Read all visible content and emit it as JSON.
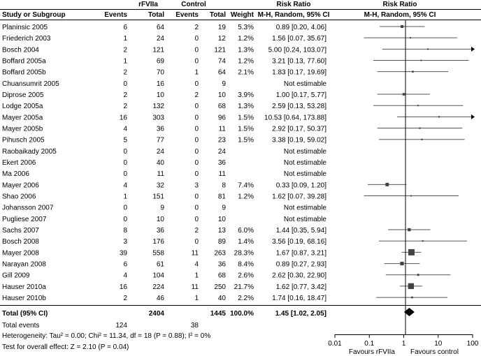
{
  "headers": {
    "group_rfviia": "rFVIIa",
    "group_control": "Control",
    "risk_ratio": "Risk Ratio",
    "study": "Study or Subgroup",
    "events": "Events",
    "total": "Total",
    "weight": "Weight",
    "method": "M-H, Random, 95% CI"
  },
  "chart_data": {
    "type": "forest",
    "xscale": "log",
    "xlim": [
      0.01,
      100
    ],
    "xticks": [
      {
        "value": 0.01,
        "label": "0.01"
      },
      {
        "value": 0.1,
        "label": "0.1"
      },
      {
        "value": 1,
        "label": "1"
      },
      {
        "value": 10,
        "label": "10"
      },
      {
        "value": 100,
        "label": "100"
      }
    ],
    "favours_left": "Favours rFVIIa",
    "favours_right": "Favours control",
    "studies": [
      {
        "name": "Planinsic 2005",
        "e1": "6",
        "t1": "64",
        "e2": "2",
        "t2": "19",
        "weight": "5.3%",
        "ci_text": "0.89 [0.20, 4.06]",
        "rr": 0.89,
        "lo": 0.2,
        "hi": 4.06
      },
      {
        "name": "Friederich 2003",
        "e1": "1",
        "t1": "24",
        "e2": "0",
        "t2": "12",
        "weight": "1.2%",
        "ci_text": "1.56 [0.07, 35.67]",
        "rr": 1.56,
        "lo": 0.07,
        "hi": 35.67
      },
      {
        "name": "Bosch 2004",
        "e1": "2",
        "t1": "121",
        "e2": "0",
        "t2": "121",
        "weight": "1.3%",
        "ci_text": "5.00 [0.24, 103.07]",
        "rr": 5.0,
        "lo": 0.24,
        "hi": 103.07
      },
      {
        "name": "Boffard 2005a",
        "e1": "1",
        "t1": "69",
        "e2": "0",
        "t2": "74",
        "weight": "1.2%",
        "ci_text": "3.21 [0.13, 77.60]",
        "rr": 3.21,
        "lo": 0.13,
        "hi": 77.6
      },
      {
        "name": "Boffard 2005b",
        "e1": "2",
        "t1": "70",
        "e2": "1",
        "t2": "64",
        "weight": "2.1%",
        "ci_text": "1.83 [0.17, 19.69]",
        "rr": 1.83,
        "lo": 0.17,
        "hi": 19.69
      },
      {
        "name": "Chuansumrit 2005",
        "e1": "0",
        "t1": "16",
        "e2": "0",
        "t2": "9",
        "weight": "",
        "ci_text": "Not estimable",
        "rr": null,
        "lo": null,
        "hi": null
      },
      {
        "name": "Diprose 2005",
        "e1": "2",
        "t1": "10",
        "e2": "2",
        "t2": "10",
        "weight": "3.9%",
        "ci_text": "1.00 [0.17, 5.77]",
        "rr": 1.0,
        "lo": 0.17,
        "hi": 5.77
      },
      {
        "name": "Lodge 2005a",
        "e1": "2",
        "t1": "132",
        "e2": "0",
        "t2": "68",
        "weight": "1.3%",
        "ci_text": "2.59 [0.13, 53.28]",
        "rr": 2.59,
        "lo": 0.13,
        "hi": 53.28
      },
      {
        "name": "Mayer 2005a",
        "e1": "16",
        "t1": "303",
        "e2": "0",
        "t2": "96",
        "weight": "1.5%",
        "ci_text": "10.53 [0.64, 173.88]",
        "rr": 10.53,
        "lo": 0.64,
        "hi": 173.88
      },
      {
        "name": "Mayer 2005b",
        "e1": "4",
        "t1": "36",
        "e2": "0",
        "t2": "11",
        "weight": "1.5%",
        "ci_text": "2.92 [0.17, 50.37]",
        "rr": 2.92,
        "lo": 0.17,
        "hi": 50.37
      },
      {
        "name": "Pihusch 2005",
        "e1": "5",
        "t1": "77",
        "e2": "0",
        "t2": "23",
        "weight": "1.5%",
        "ci_text": "3.38 [0.19, 59.02]",
        "rr": 3.38,
        "lo": 0.19,
        "hi": 59.02
      },
      {
        "name": "Raobaikady 2005",
        "e1": "0",
        "t1": "24",
        "e2": "0",
        "t2": "24",
        "weight": "",
        "ci_text": "Not estimable",
        "rr": null,
        "lo": null,
        "hi": null
      },
      {
        "name": "Ekert 2006",
        "e1": "0",
        "t1": "40",
        "e2": "0",
        "t2": "36",
        "weight": "",
        "ci_text": "Not estimable",
        "rr": null,
        "lo": null,
        "hi": null
      },
      {
        "name": "Ma 2006",
        "e1": "0",
        "t1": "11",
        "e2": "0",
        "t2": "11",
        "weight": "",
        "ci_text": "Not estimable",
        "rr": null,
        "lo": null,
        "hi": null
      },
      {
        "name": "Mayer 2006",
        "e1": "4",
        "t1": "32",
        "e2": "3",
        "t2": "8",
        "weight": "7.4%",
        "ci_text": "0.33 [0.09, 1.20]",
        "rr": 0.33,
        "lo": 0.09,
        "hi": 1.2
      },
      {
        "name": "Shao 2006",
        "e1": "1",
        "t1": "151",
        "e2": "0",
        "t2": "81",
        "weight": "1.2%",
        "ci_text": "1.62 [0.07, 39.28]",
        "rr": 1.62,
        "lo": 0.07,
        "hi": 39.28
      },
      {
        "name": "Johansson 2007",
        "e1": "0",
        "t1": "9",
        "e2": "0",
        "t2": "9",
        "weight": "",
        "ci_text": "Not estimable",
        "rr": null,
        "lo": null,
        "hi": null
      },
      {
        "name": "Pugliese 2007",
        "e1": "0",
        "t1": "10",
        "e2": "0",
        "t2": "10",
        "weight": "",
        "ci_text": "Not estimable",
        "rr": null,
        "lo": null,
        "hi": null
      },
      {
        "name": "Sachs 2007",
        "e1": "8",
        "t1": "36",
        "e2": "2",
        "t2": "13",
        "weight": "6.0%",
        "ci_text": "1.44 [0.35, 5.94]",
        "rr": 1.44,
        "lo": 0.35,
        "hi": 5.94
      },
      {
        "name": "Bosch 2008",
        "e1": "3",
        "t1": "176",
        "e2": "0",
        "t2": "89",
        "weight": "1.4%",
        "ci_text": "3.56 [0.19, 68.16]",
        "rr": 3.56,
        "lo": 0.19,
        "hi": 68.16
      },
      {
        "name": "Mayer 2008",
        "e1": "39",
        "t1": "558",
        "e2": "11",
        "t2": "263",
        "weight": "28.3%",
        "ci_text": "1.67 [0.87, 3.21]",
        "rr": 1.67,
        "lo": 0.87,
        "hi": 3.21
      },
      {
        "name": "Narayan 2008",
        "e1": "6",
        "t1": "61",
        "e2": "4",
        "t2": "36",
        "weight": "8.4%",
        "ci_text": "0.89 [0.27, 2.93]",
        "rr": 0.89,
        "lo": 0.27,
        "hi": 2.93
      },
      {
        "name": "Gill 2009",
        "e1": "4",
        "t1": "104",
        "e2": "1",
        "t2": "68",
        "weight": "2.6%",
        "ci_text": "2.62 [0.30, 22.90]",
        "rr": 2.62,
        "lo": 0.3,
        "hi": 22.9
      },
      {
        "name": "Hauser 2010a",
        "e1": "16",
        "t1": "224",
        "e2": "11",
        "t2": "250",
        "weight": "21.7%",
        "ci_text": "1.62 [0.77, 3.42]",
        "rr": 1.62,
        "lo": 0.77,
        "hi": 3.42
      },
      {
        "name": "Hauser 2010b",
        "e1": "2",
        "t1": "46",
        "e2": "1",
        "t2": "40",
        "weight": "2.2%",
        "ci_text": "1.74 [0.16, 18.47]",
        "rr": 1.74,
        "lo": 0.16,
        "hi": 18.47
      }
    ],
    "total": {
      "name": "Total (95% CI)",
      "t1": "2404",
      "t2": "1445",
      "weight": "100.0%",
      "ci_text": "1.45 [1.02, 2.05]",
      "rr": 1.45,
      "lo": 1.02,
      "hi": 2.05
    },
    "total_events": {
      "label": "Total events",
      "e1": "124",
      "e2": "38"
    },
    "heterogeneity": "Heterogeneity: Tau² = 0.00; Chi² = 11.34, df = 18 (P = 0.88); I² = 0%",
    "overall_effect": "Test for overall effect: Z = 2.10 (P = 0.04)"
  }
}
